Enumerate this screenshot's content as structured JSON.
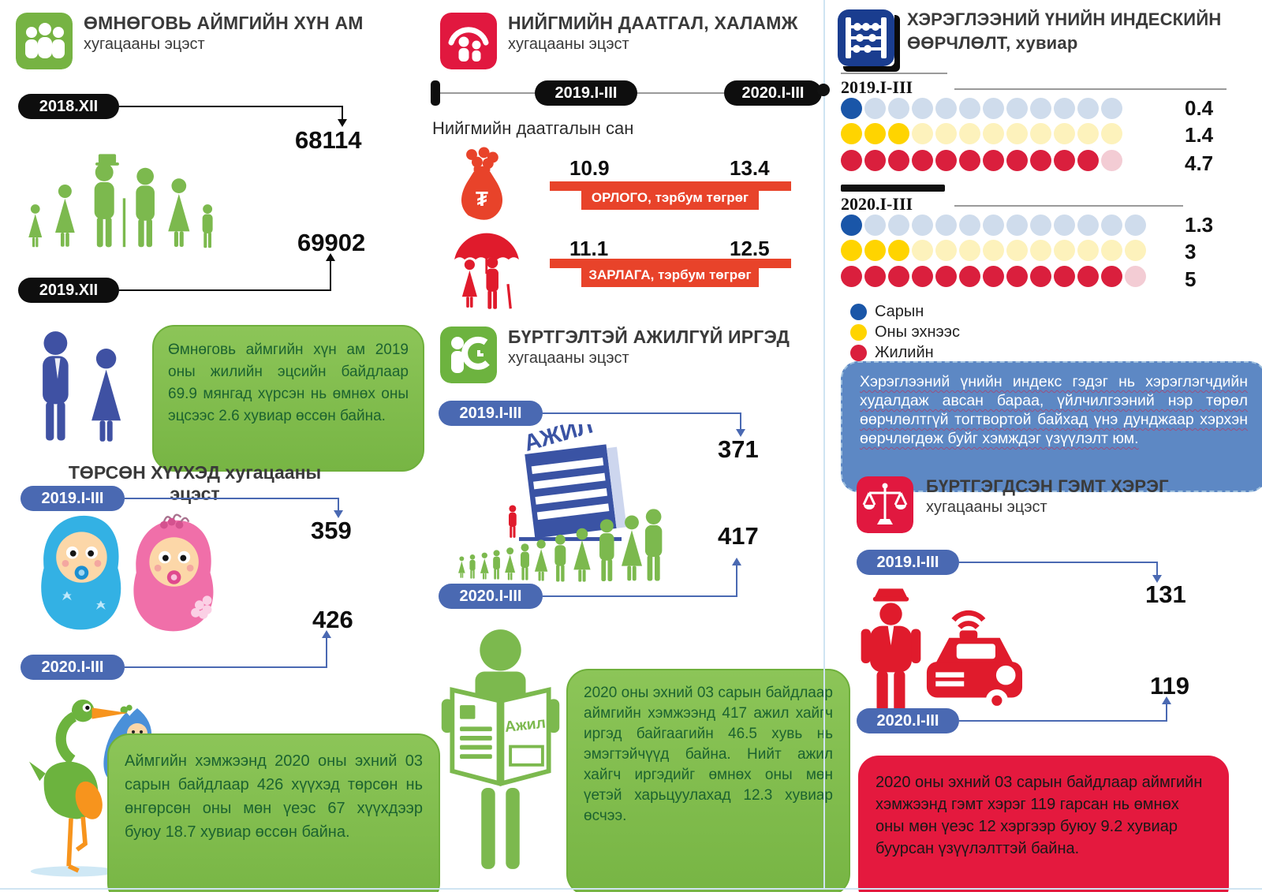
{
  "colors": {
    "green": "#76b343",
    "green_light": "#7cb94e",
    "blue_pill": "#4a69b2",
    "red": "#e1183f",
    "orange_red": "#e8432a",
    "navy": "#1a3d8f",
    "dot_blue": "#1a56a8",
    "dot_blue_pale": "#cfdcec",
    "dot_yellow": "#ffd400",
    "dot_yellow_pale": "#fdf2bc",
    "dot_red": "#da1f3d",
    "dot_red_pale": "#f3ccd4",
    "box_blue": "#5d88c4",
    "baby_blue": "#33b1e4",
    "baby_pink": "#f06fa9"
  },
  "col1": {
    "header": {
      "title": "ӨМНӨГОВЬ АЙМГИЙН ХҮН АМ",
      "subtitle": "хугацааны эцэст"
    },
    "note1": "Өмнөговь аймгийн хүн ам 2019 оны жилийн эцсийн байдлаар 69.9 мянгад хүрсэн нь өмнөх оны эцсээс 2.6 хувиар өссөн байна.",
    "births_title": "ТӨРСӨН ХҮҮХЭД хугацааны эцэст",
    "note2": "Аймгийн хэмжээнд 2020 оны эхний 03 сарын байдлаар 426 хүүхэд төрсөн нь өнгөрсөн оны мөн үеэс 67 хүүхдээр буюу 18.7 хувиар өссөн байна."
  },
  "col2": {
    "header": {
      "title": "НИЙГМИЙН ДААТГАЛ, ХАЛАМЖ",
      "subtitle": "хугацааны эцэст"
    },
    "fund_title": "Нийгмийн даатгалын сан",
    "currency_symbol": "₮",
    "unemployed": {
      "title": "БҮРТГЭЛТЭЙ АЖИЛГҮЙ ИРГЭД",
      "subtitle": "хугацааны эцэст"
    },
    "building_label": "АЖИЛ",
    "newspaper_label": "Ажил",
    "note": "2020 оны эхний 03 сарын байдлаар аймгийн хэмжээнд 417 ажил хайгч иргэд байгаагийн 46.5 хувь нь эмэгтэйчүүд байна. Нийт ажил хайгч иргэдийг өмнөх оны мөн үетэй харьцуулахад 12.3 хувиар өсчээ."
  },
  "col3": {
    "cpi": {
      "title": "ХЭРЭГЛЭЭНИЙ ҮНИЙН ИНДЕСКИЙН",
      "subtitle": "ӨӨРЧЛӨЛТ, хувиар"
    },
    "note": "Хэрэглээний үнийн индекс гэдэг нь хэрэглэгчдийн худалдаж авсан бараа, үйлчилгээний нэр төрөл өөрчлөлтгүй тогтвортой байхад үнэ дунджаар хэрхэн өөрчлөгдөж буйг хэмждэг үзүүлэлт юм.",
    "crime": {
      "title": "БҮРТГЭГДСЭН ГЭМТ ХЭРЭГ",
      "subtitle": "хугацааны эцэст"
    },
    "crime_note": "2020 оны эхний 03 сарын байдлаар аймгийн хэмжээнд  гэмт хэрэг 119 гарсан нь өмнөх оны мөн үеэс 12 хэргээр буюу 9.2 хувиар буурсан үзүүлэлттэй байна."
  },
  "chart_data": [
    {
      "type": "pictograph",
      "title": "ӨМНӨГОВЬ АЙМГИЙН ХҮН АМ хугацааны эцэст",
      "categories": [
        "2018.XII",
        "2019.XII"
      ],
      "values": [
        68114,
        69902
      ]
    },
    {
      "type": "pictograph",
      "title": "ТӨРСӨН ХҮҮХЭД хугацааны эцэст",
      "categories": [
        "2019.I-III",
        "2020.I-III"
      ],
      "values": [
        359,
        426
      ]
    },
    {
      "type": "table",
      "title": "Нийгмийн даатгалын сан",
      "categories": [
        "2019.I-III",
        "2020.I-III"
      ],
      "series": [
        {
          "name": "ОРЛОГО, тэрбум төгрөг",
          "values": [
            10.9,
            13.4
          ]
        },
        {
          "name": "ЗАРЛАГА, тэрбум төгрөг",
          "values": [
            11.1,
            12.5
          ]
        }
      ]
    },
    {
      "type": "pictograph",
      "title": "БҮРТГЭЛТЭЙ АЖИЛГҮЙ ИРГЭД хугацааны эцэст",
      "categories": [
        "2019.I-III",
        "2020.I-III"
      ],
      "values": [
        371,
        417
      ]
    },
    {
      "type": "dot-pictograph",
      "title": "ХЭРЭГЛЭЭНИЙ ҮНИЙН ИНДЕСКИЙН ӨӨРЧЛӨЛТ, хувиар",
      "legend": [
        {
          "label": "Сарын",
          "color": "#1a56a8"
        },
        {
          "label": "Оны эхнээс",
          "color": "#ffd400"
        },
        {
          "label": "Жилийн",
          "color": "#da1f3d"
        }
      ],
      "groups": [
        {
          "period": "2019.I-III",
          "rows": [
            {
              "name": "Сарын",
              "value": 0.4,
              "filled": 1,
              "total": 12,
              "color": "#1a56a8",
              "pale": "#cfdcec"
            },
            {
              "name": "Оны эхнээс",
              "value": 1.4,
              "filled": 3,
              "total": 12,
              "color": "#ffd400",
              "pale": "#fdf2bc"
            },
            {
              "name": "Жилийн",
              "value": 4.7,
              "filled": 11,
              "total": 12,
              "color": "#da1f3d",
              "pale": "#f3ccd4"
            }
          ]
        },
        {
          "period": "2020.I-III",
          "rows": [
            {
              "name": "Сарын",
              "value": 1.3,
              "filled": 1,
              "total": 13,
              "color": "#1a56a8",
              "pale": "#cfdcec"
            },
            {
              "name": "Оны эхнээс",
              "value": 3,
              "filled": 3,
              "total": 13,
              "color": "#ffd400",
              "pale": "#fdf2bc"
            },
            {
              "name": "Жилийн",
              "value": 5,
              "filled": 12,
              "total": 13,
              "color": "#da1f3d",
              "pale": "#f3ccd4"
            }
          ]
        }
      ]
    },
    {
      "type": "pictograph",
      "title": "БҮРТГЭГДСЭН ГЭМТ ХЭРЭГ хугацааны эцэст",
      "categories": [
        "2019.I-III",
        "2020.I-III"
      ],
      "values": [
        131,
        119
      ]
    }
  ]
}
